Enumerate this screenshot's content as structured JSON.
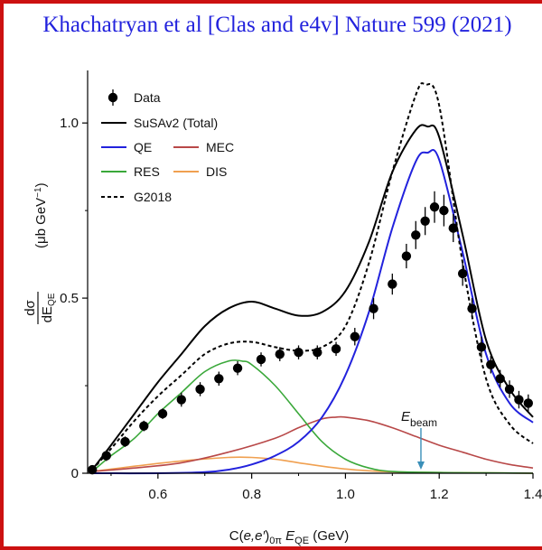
{
  "banner_title": "Khachatryan et al [Clas and e4v] Nature 599 (2021)",
  "chart_data": {
    "type": "line",
    "xlabel": "C(e,e′)₀π E_QE (GeV)",
    "xlabel_parts": {
      "a": "C(",
      "b": "e,e′",
      "c": ")",
      "d": "0π",
      "e": " E",
      "f": "QE",
      "g": " (GeV)"
    },
    "ylabel_parts": {
      "num": "dσ",
      "den": "dE",
      "den_sub": "QE",
      "unit": "(μb GeV",
      "unit_sup": "−1",
      "unit_end": ")"
    },
    "xlim": [
      0.45,
      1.4
    ],
    "ylim": [
      0,
      1.15
    ],
    "x_ticks": [
      0.6,
      0.8,
      1.0,
      1.2,
      1.4
    ],
    "x_tick_labels": [
      "0.6",
      "0.8",
      "1.0",
      "1.2",
      "1.4"
    ],
    "y_ticks": [
      0,
      0.5,
      1.0
    ],
    "y_tick_labels": [
      "0",
      "0.5",
      "1.0"
    ],
    "annotation": {
      "text": "E",
      "sub": "beam",
      "x": 1.161,
      "arrow_color": "#3a8fb8"
    },
    "legend": [
      {
        "key": "data",
        "label": "Data",
        "style": "marker"
      },
      {
        "key": "susav2",
        "label": "SuSAv2 (Total)",
        "style": "line",
        "color": "#000000"
      },
      {
        "key": "qe",
        "label": "QE",
        "style": "line",
        "color": "#2222dd"
      },
      {
        "key": "mec",
        "label": "MEC",
        "style": "line",
        "color": "#b84848"
      },
      {
        "key": "res",
        "label": "RES",
        "style": "line",
        "color": "#3aa83a"
      },
      {
        "key": "dis",
        "label": "DIS",
        "style": "line",
        "color": "#f0a050"
      },
      {
        "key": "g2018",
        "label": "G2018",
        "style": "dashed",
        "color": "#000000"
      }
    ],
    "series": [
      {
        "key": "susav2",
        "color": "#000000",
        "dash": false,
        "x": [
          0.46,
          0.5,
          0.55,
          0.6,
          0.65,
          0.7,
          0.75,
          0.8,
          0.85,
          0.9,
          0.95,
          1.0,
          1.05,
          1.1,
          1.15,
          1.175,
          1.2,
          1.25,
          1.3,
          1.35,
          1.4
        ],
        "y": [
          0.01,
          0.08,
          0.17,
          0.26,
          0.34,
          0.42,
          0.47,
          0.49,
          0.47,
          0.45,
          0.46,
          0.52,
          0.66,
          0.86,
          0.98,
          0.99,
          0.96,
          0.68,
          0.38,
          0.24,
          0.16
        ]
      },
      {
        "key": "qe",
        "color": "#2222dd",
        "dash": false,
        "x": [
          0.46,
          0.6,
          0.7,
          0.75,
          0.8,
          0.85,
          0.9,
          0.95,
          1.0,
          1.05,
          1.1,
          1.15,
          1.175,
          1.2,
          1.25,
          1.3,
          1.35,
          1.4
        ],
        "y": [
          0,
          0,
          0.003,
          0.01,
          0.025,
          0.05,
          0.09,
          0.16,
          0.28,
          0.46,
          0.7,
          0.89,
          0.915,
          0.895,
          0.63,
          0.34,
          0.2,
          0.145
        ]
      },
      {
        "key": "mec",
        "color": "#b84848",
        "dash": false,
        "x": [
          0.46,
          0.55,
          0.65,
          0.75,
          0.85,
          0.9,
          0.95,
          0.98,
          1.0,
          1.05,
          1.1,
          1.15,
          1.2,
          1.25,
          1.3,
          1.35,
          1.4
        ],
        "y": [
          0.005,
          0.015,
          0.03,
          0.06,
          0.1,
          0.13,
          0.155,
          0.16,
          0.16,
          0.15,
          0.13,
          0.105,
          0.08,
          0.06,
          0.04,
          0.025,
          0.015
        ]
      },
      {
        "key": "res",
        "color": "#3aa83a",
        "dash": false,
        "x": [
          0.46,
          0.5,
          0.55,
          0.6,
          0.65,
          0.7,
          0.75,
          0.78,
          0.8,
          0.85,
          0.9,
          0.95,
          1.0,
          1.05,
          1.1,
          1.2,
          1.3,
          1.4
        ],
        "y": [
          0.005,
          0.05,
          0.1,
          0.17,
          0.23,
          0.29,
          0.32,
          0.32,
          0.31,
          0.25,
          0.17,
          0.09,
          0.04,
          0.015,
          0.005,
          0.002,
          0.001,
          0
        ]
      },
      {
        "key": "dis",
        "color": "#f0a050",
        "dash": false,
        "x": [
          0.46,
          0.55,
          0.65,
          0.75,
          0.8,
          0.85,
          0.9,
          0.95,
          1.0,
          1.05,
          1.1,
          1.2,
          1.3,
          1.4
        ],
        "y": [
          0.005,
          0.02,
          0.035,
          0.045,
          0.045,
          0.04,
          0.03,
          0.02,
          0.012,
          0.007,
          0.004,
          0.002,
          0.001,
          0
        ]
      },
      {
        "key": "g2018",
        "color": "#000000",
        "dash": true,
        "x": [
          0.46,
          0.5,
          0.55,
          0.6,
          0.65,
          0.7,
          0.75,
          0.8,
          0.85,
          0.9,
          0.95,
          1.0,
          1.05,
          1.1,
          1.15,
          1.17,
          1.2,
          1.25,
          1.3,
          1.35,
          1.4
        ],
        "y": [
          0.01,
          0.07,
          0.15,
          0.22,
          0.28,
          0.34,
          0.37,
          0.375,
          0.36,
          0.35,
          0.36,
          0.42,
          0.6,
          0.86,
          1.08,
          1.11,
          1.05,
          0.6,
          0.27,
          0.14,
          0.085
        ]
      }
    ],
    "data_points": {
      "x": [
        0.46,
        0.49,
        0.53,
        0.57,
        0.61,
        0.65,
        0.69,
        0.73,
        0.77,
        0.82,
        0.86,
        0.9,
        0.94,
        0.98,
        1.02,
        1.06,
        1.1,
        1.13,
        1.15,
        1.17,
        1.19,
        1.21,
        1.23,
        1.25,
        1.27,
        1.29,
        1.31,
        1.33,
        1.35,
        1.37,
        1.39
      ],
      "y": [
        0.01,
        0.05,
        0.09,
        0.135,
        0.17,
        0.21,
        0.24,
        0.27,
        0.3,
        0.325,
        0.34,
        0.345,
        0.345,
        0.355,
        0.39,
        0.47,
        0.54,
        0.62,
        0.68,
        0.72,
        0.76,
        0.75,
        0.7,
        0.57,
        0.47,
        0.36,
        0.31,
        0.27,
        0.24,
        0.21,
        0.2
      ],
      "err": [
        0.01,
        0.015,
        0.015,
        0.015,
        0.015,
        0.02,
        0.02,
        0.02,
        0.02,
        0.02,
        0.02,
        0.02,
        0.02,
        0.02,
        0.025,
        0.03,
        0.03,
        0.035,
        0.04,
        0.04,
        0.045,
        0.045,
        0.04,
        0.035,
        0.03,
        0.03,
        0.025,
        0.025,
        0.025,
        0.025,
        0.025
      ]
    }
  }
}
